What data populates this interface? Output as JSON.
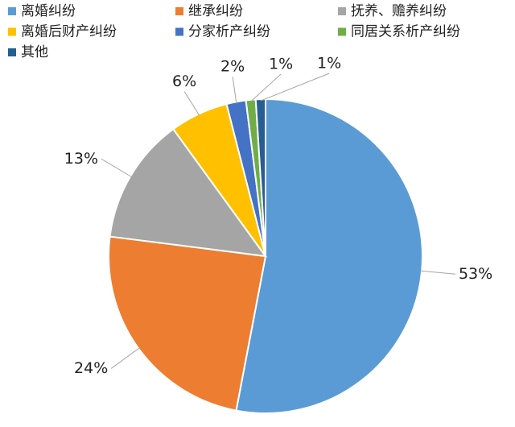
{
  "chart_data": {
    "type": "pie",
    "categories": [
      "离婚纠纷",
      "继承纠纷",
      "抚养、赡养纠纷",
      "离婚后财产纠纷",
      "分家析产纠纷",
      "同居关系析产纠纷",
      "其他"
    ],
    "values": [
      53,
      24,
      13,
      6,
      2,
      1,
      1
    ],
    "value_labels": [
      "53%",
      "24%",
      "13%",
      "6%",
      "2%",
      "1%",
      "1%"
    ],
    "colors": [
      "#5b9bd5",
      "#ed7d31",
      "#a5a5a5",
      "#ffc000",
      "#4472c4",
      "#70ad47",
      "#255e91"
    ],
    "legend": "top"
  }
}
